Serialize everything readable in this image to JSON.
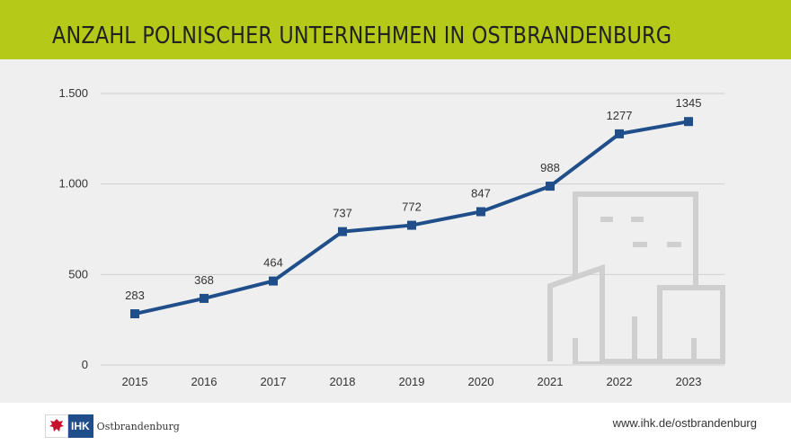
{
  "header": {
    "title": "ANZAHL POLNISCHER UNTERNEHMEN IN OSTBRANDENBURG"
  },
  "colors": {
    "header_bg": "#b5c918",
    "line": "#1f4e8a",
    "panel_bg": "#efefef",
    "building": "#cfcfcf"
  },
  "chart_data": {
    "type": "line",
    "title": "ANZAHL POLNISCHER UNTERNEHMEN IN OSTBRANDENBURG",
    "categories": [
      "2015",
      "2016",
      "2017",
      "2018",
      "2019",
      "2020",
      "2021",
      "2022",
      "2023"
    ],
    "values": [
      283,
      368,
      464,
      737,
      772,
      847,
      988,
      1277,
      1345
    ],
    "data_labels": [
      "283",
      "368",
      "464",
      "737",
      "772",
      "847",
      "988",
      "1277",
      "1345"
    ],
    "y_ticks": [
      0,
      500,
      1000,
      1500
    ],
    "y_tick_labels": [
      "0",
      "500",
      "1.000",
      "1.500"
    ],
    "ylim": [
      0,
      1500
    ],
    "grid": true,
    "marker": "square",
    "decoration": "building-icon"
  },
  "footer": {
    "logo_text": "IHK",
    "logo_name": "Ostbrandenburg",
    "url": "www.ihk.de/ostbrandenburg"
  }
}
